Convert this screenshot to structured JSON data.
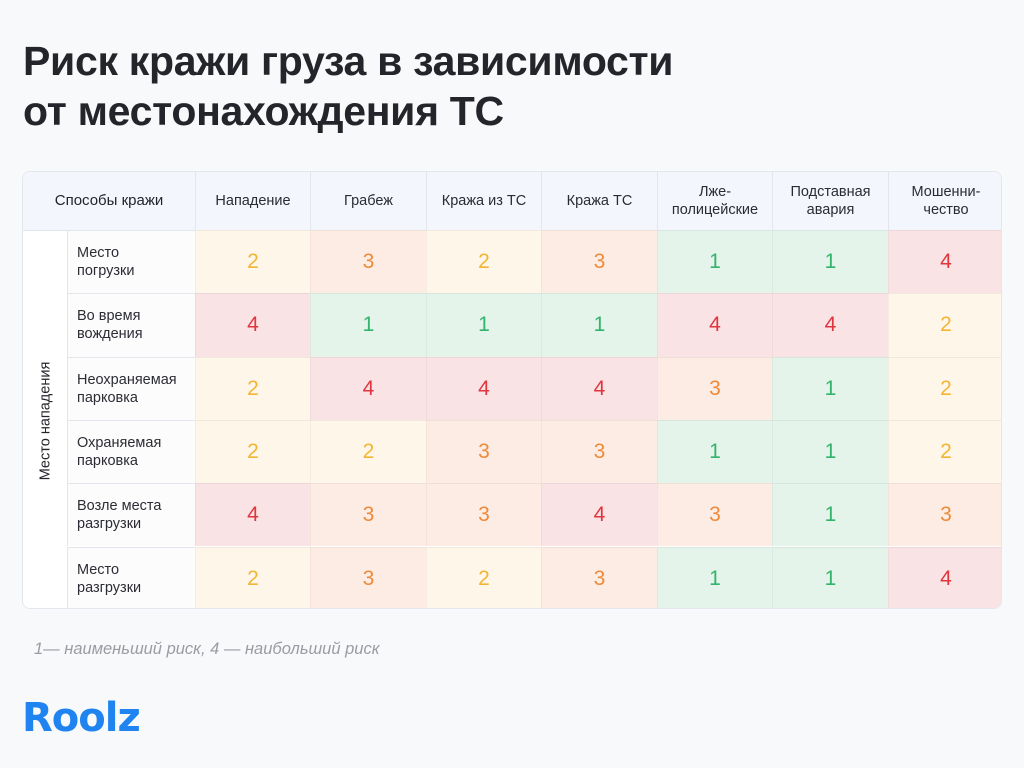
{
  "title": {
    "line1": "Риск кражи груза в зависимости",
    "line2": "от местонахождения ТС"
  },
  "table": {
    "corner_label": "Способы кражи",
    "group_label": "Место нападения",
    "columns": [
      "Нападение",
      "Грабеж",
      "Кража из ТС",
      "Кража ТС",
      "Лже-\nполицейские",
      "Подставная\nавария",
      "Мошенни-\nчество"
    ],
    "rows": [
      {
        "label": "Место\nпогрузки",
        "values": [
          2,
          3,
          2,
          3,
          1,
          1,
          4
        ]
      },
      {
        "label": "Во время\nвождения",
        "values": [
          4,
          1,
          1,
          1,
          4,
          4,
          2
        ]
      },
      {
        "label": "Неохраняемая\nпарковка",
        "values": [
          2,
          4,
          4,
          4,
          3,
          1,
          2
        ]
      },
      {
        "label": "Охраняемая\nпарковка",
        "values": [
          2,
          2,
          3,
          3,
          1,
          1,
          2
        ]
      },
      {
        "label": "Возле места\nразгрузки",
        "values": [
          4,
          3,
          3,
          4,
          3,
          1,
          3
        ]
      },
      {
        "label": "Место\nразгрузки",
        "values": [
          2,
          3,
          2,
          3,
          1,
          1,
          4
        ]
      }
    ]
  },
  "legend": "1— наименьший риск, 4 — наибольший риск",
  "logo": "Roolz",
  "colors": {
    "risk_1": "#33b36b",
    "risk_2": "#f2b535",
    "risk_3": "#ee8a3a",
    "risk_4": "#e0353d",
    "brand": "#1f84f0"
  },
  "chart_data": {
    "type": "heatmap",
    "title": "Риск кражи груза в зависимости от местонахождения ТС",
    "xlabel": "Способы кражи",
    "ylabel": "Место нападения",
    "x": [
      "Нападение",
      "Грабеж",
      "Кража из ТС",
      "Кража ТС",
      "Лже-полицейские",
      "Подставная авария",
      "Мошенничество"
    ],
    "y": [
      "Место погрузки",
      "Во время вождения",
      "Неохраняемая парковка",
      "Охраняемая парковка",
      "Возле места разгрузки",
      "Место разгрузки"
    ],
    "values": [
      [
        2,
        3,
        2,
        3,
        1,
        1,
        4
      ],
      [
        4,
        1,
        1,
        1,
        4,
        4,
        2
      ],
      [
        2,
        4,
        4,
        4,
        3,
        1,
        2
      ],
      [
        2,
        2,
        3,
        3,
        1,
        1,
        2
      ],
      [
        4,
        3,
        3,
        4,
        3,
        1,
        3
      ],
      [
        2,
        3,
        2,
        3,
        1,
        1,
        4
      ]
    ],
    "scale": [
      1,
      4
    ],
    "annotation": "1— наименьший риск, 4 — наибольший риск"
  }
}
